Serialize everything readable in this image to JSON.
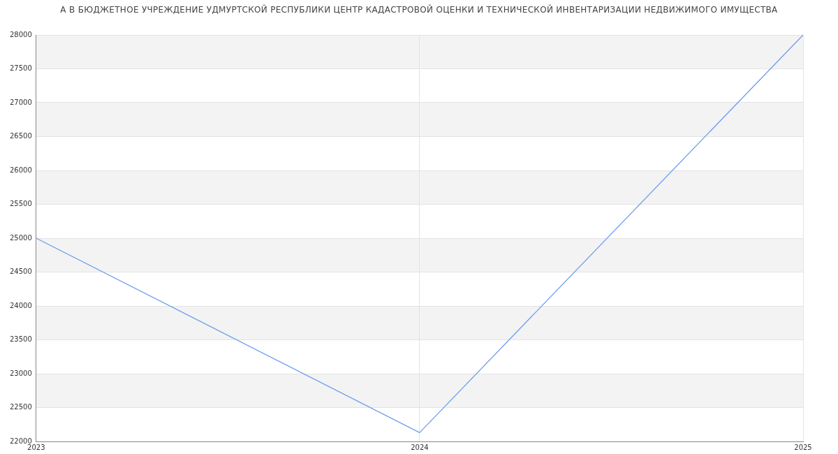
{
  "chart_data": {
    "type": "line",
    "title": "А В БЮДЖЕТНОЕ УЧРЕЖДЕНИЕ УДМУРТСКОЙ РЕСПУБЛИКИ ЦЕНТР КАДАСТРОВОЙ ОЦЕНКИ И ТЕХНИЧЕСКОЙ ИНВЕНТАРИЗАЦИИ НЕДВИЖИМОГО ИМУЩЕСТВА",
    "x": [
      2023,
      2024,
      2025
    ],
    "series": [
      {
        "color": "#6d9eeb",
        "values": [
          25000,
          22130,
          28000
        ]
      }
    ],
    "xlim": [
      2023,
      2025
    ],
    "xticks": [
      2023,
      2024,
      2025
    ],
    "ylim": [
      22000,
      28000
    ],
    "yticks": [
      22000,
      22500,
      23000,
      23500,
      24000,
      24500,
      25000,
      25500,
      26000,
      26500,
      27000,
      27500,
      28000
    ],
    "grid": true,
    "legend": false,
    "marker": "none",
    "line_style": "solid"
  }
}
